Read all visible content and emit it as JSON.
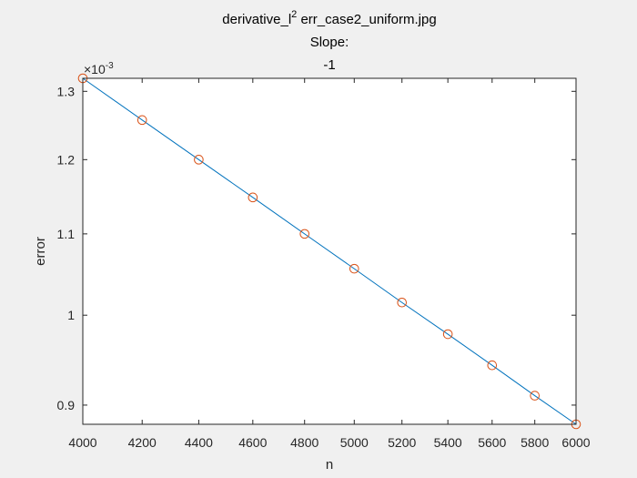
{
  "chart_data": {
    "type": "line",
    "title_lines": [
      "derivative_l",
      "Slope:",
      "-1"
    ],
    "title_superscript": "2",
    "title_suffix": " err_case2_uniform.jpg",
    "xlabel": "n",
    "ylabel": "error",
    "x_scale": "log",
    "y_scale": "log",
    "xlim": [
      4000,
      6000
    ],
    "ylim": [
      0.00088,
      0.00132
    ],
    "y_exponent_label": "×10",
    "y_exponent_power": "-3",
    "x_ticks": [
      4000,
      4200,
      4400,
      4600,
      4800,
      5000,
      5200,
      5400,
      5600,
      5800,
      6000
    ],
    "x_tick_labels": [
      "4000",
      "4200",
      "4400",
      "4600",
      "4800",
      "5000",
      "5200",
      "5400",
      "5600",
      "5800",
      "6000"
    ],
    "y_ticks": [
      0.0009,
      0.001,
      0.0011,
      0.0012,
      0.0013
    ],
    "y_tick_labels": [
      "0.9",
      "1",
      "1.1",
      "1.2",
      "1.3"
    ],
    "grid": false,
    "series": [
      {
        "style": "line",
        "color": "#0072bd",
        "x": [
          4000,
          4200,
          4400,
          4600,
          4800,
          5000,
          5200,
          5400,
          5600,
          5800,
          6000
        ],
        "y": [
          0.00132,
          0.001257,
          0.0012,
          0.001148,
          0.0011,
          0.001056,
          0.001015,
          0.000978,
          0.000943,
          0.00091,
          0.00088
        ]
      },
      {
        "style": "markers",
        "marker": "circle",
        "color": "#d95319",
        "x": [
          4000,
          4200,
          4400,
          4600,
          4800,
          5000,
          5200,
          5400,
          5600,
          5800,
          6000
        ],
        "y": [
          0.00132,
          0.001257,
          0.0012,
          0.001148,
          0.0011,
          0.001056,
          0.001015,
          0.000978,
          0.000943,
          0.00091,
          0.00088
        ]
      }
    ]
  }
}
